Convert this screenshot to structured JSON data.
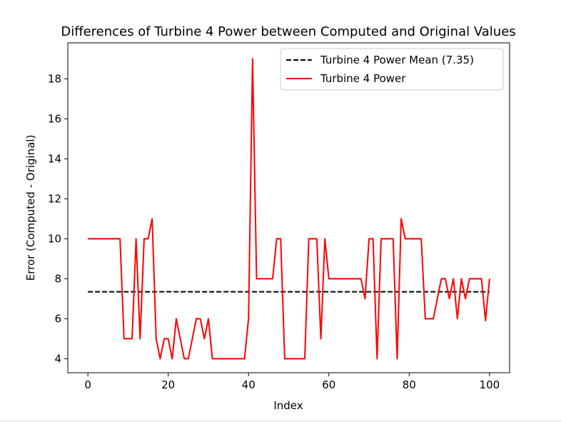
{
  "chart_data": {
    "type": "line",
    "title": "Differences of Turbine 4 Power between Computed and Original Values",
    "xlabel": "Index",
    "ylabel": "Error (Computed - Original)",
    "xlim": [
      -5,
      105
    ],
    "ylim": [
      3.3,
      19.8
    ],
    "xticks": [
      0,
      20,
      40,
      60,
      80,
      100
    ],
    "yticks": [
      4,
      6,
      8,
      10,
      12,
      14,
      16,
      18
    ],
    "legend_position": "top-right",
    "grid": false,
    "legend": [
      "Turbine 4 Power Mean (7.35)",
      "Turbine 4 Power"
    ],
    "series": [
      {
        "name": "Turbine 4 Power",
        "color": "#ff0000",
        "style": "solid",
        "x": [
          0,
          1,
          2,
          3,
          4,
          5,
          6,
          7,
          8,
          9,
          10,
          11,
          12,
          13,
          14,
          15,
          16,
          17,
          18,
          19,
          20,
          21,
          22,
          23,
          24,
          25,
          26,
          27,
          28,
          29,
          30,
          31,
          32,
          33,
          34,
          35,
          36,
          37,
          38,
          39,
          40,
          41,
          42,
          43,
          44,
          45,
          46,
          47,
          48,
          49,
          50,
          51,
          52,
          53,
          54,
          55,
          56,
          57,
          58,
          59,
          60,
          61,
          62,
          63,
          64,
          65,
          66,
          67,
          68,
          69,
          70,
          71,
          72,
          73,
          74,
          75,
          76,
          77,
          78,
          79,
          80,
          81,
          82,
          83,
          84,
          85,
          86,
          87,
          88,
          89,
          90,
          91,
          92,
          93,
          94,
          95,
          96,
          97,
          98,
          99,
          100
        ],
        "y": [
          10,
          10,
          10,
          10,
          10,
          10,
          10,
          10,
          10,
          5,
          5,
          5,
          10,
          5,
          10,
          10,
          11,
          5,
          4,
          5,
          5,
          4,
          6,
          5,
          4,
          4,
          5,
          6,
          6,
          5,
          6,
          4,
          4,
          4,
          4,
          4,
          4,
          4,
          4,
          4,
          6,
          19,
          8,
          8,
          8,
          8,
          8,
          10,
          10,
          4,
          4,
          4,
          4,
          4,
          4,
          10,
          10,
          10,
          5,
          10,
          8,
          8,
          8,
          8,
          8,
          8,
          8,
          8,
          8,
          7,
          10,
          10,
          4,
          10,
          10,
          10,
          10,
          4,
          11,
          10,
          10,
          10,
          10,
          10,
          6,
          6,
          6,
          7,
          8,
          8,
          7,
          8,
          6,
          8,
          7,
          8,
          8,
          8,
          8,
          5.9,
          8
        ]
      },
      {
        "name": "Turbine 4 Power Mean (7.35)",
        "color": "#000000",
        "style": "dashed",
        "x": [
          0,
          100
        ],
        "y": [
          7.35,
          7.35
        ]
      }
    ]
  }
}
